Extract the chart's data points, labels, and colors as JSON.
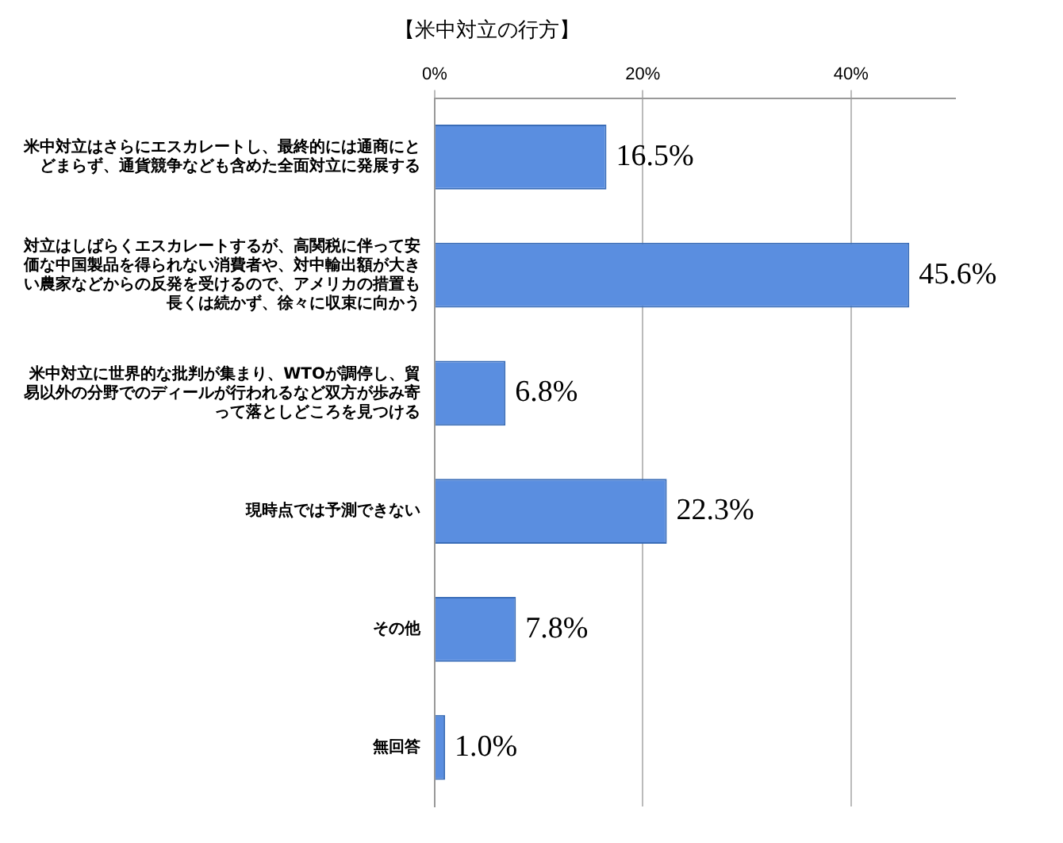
{
  "chart_data": {
    "type": "bar",
    "orientation": "horizontal",
    "title": "【米中対立の行方】",
    "categories": [
      "米中対立はさらにエスカレートし、最終的には通商にとどまらず、通貨競争なども含めた全面対立に発展する",
      "対立はしばらくエスカレートするが、高関税に伴って安価な中国製品を得られない消費者や、対中輸出額が大きい農家などからの反発を受けるので、アメリカの措置も長くは続かず、徐々に収束に向かう",
      "米中対立に世界的な批判が集まり、WTOが調停し、貿易以外の分野でのディールが行われるなど双方が歩み寄って落としどころを見つける",
      "現時点では予測できない",
      "その他",
      "無回答"
    ],
    "values": [
      16.5,
      45.6,
      6.8,
      22.3,
      7.8,
      1.0
    ],
    "value_labels": [
      "16.5%",
      "45.6%",
      "6.8%",
      "22.3%",
      "7.8%",
      "1.0%"
    ],
    "color": "#5a8ee0",
    "xlim": [
      0,
      50
    ],
    "xticks": [
      {
        "value": 0,
        "label": "0%"
      },
      {
        "value": 20,
        "label": "20%"
      },
      {
        "value": 40,
        "label": "40%"
      }
    ],
    "grid": "x",
    "legend": false
  }
}
